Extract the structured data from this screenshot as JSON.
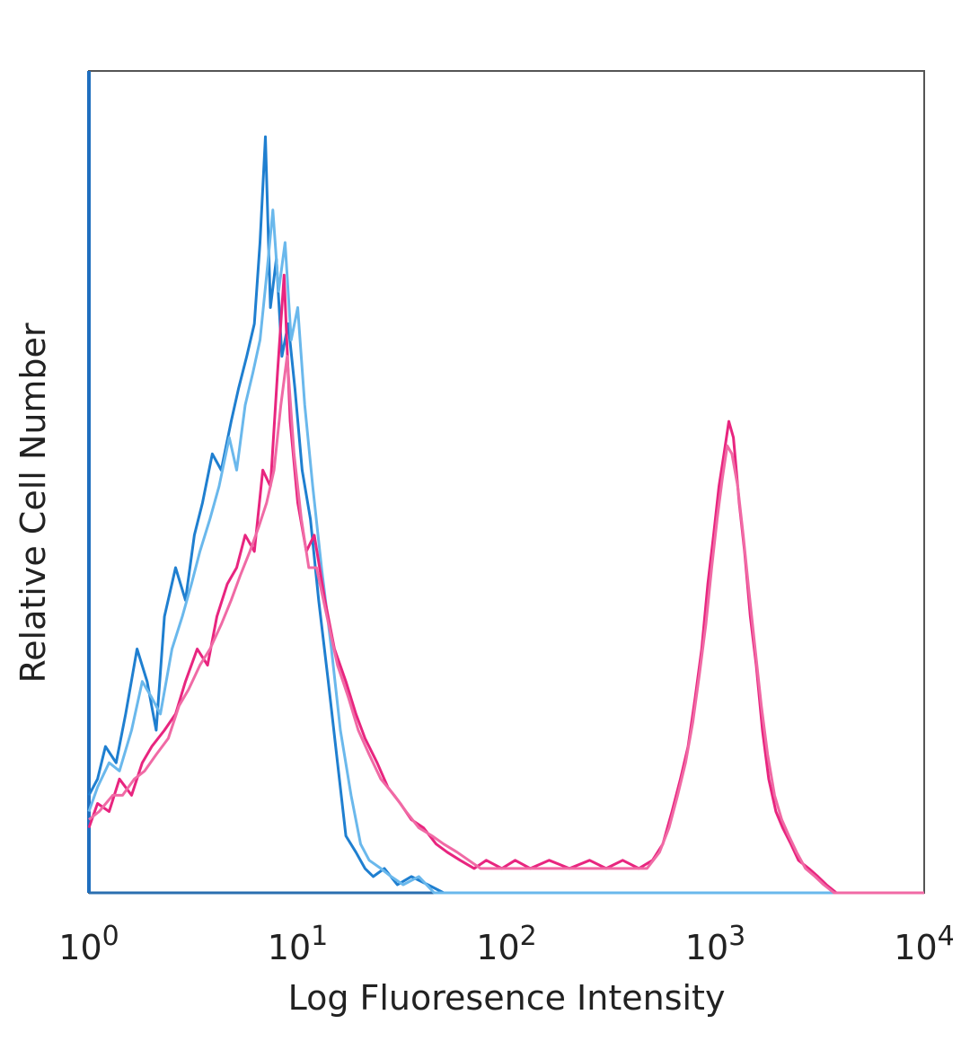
{
  "chart_data": {
    "type": "line",
    "title": "",
    "xlabel": "Log Fluoresence Intensity",
    "ylabel": "Relative Cell Number",
    "x_scale": "log",
    "xlim": [
      1,
      10000
    ],
    "ylim": [
      0,
      100
    ],
    "x_ticks": [
      {
        "value": 1,
        "base": "10",
        "exp": "0"
      },
      {
        "value": 10,
        "base": "10",
        "exp": "1"
      },
      {
        "value": 100,
        "base": "10",
        "exp": "2"
      },
      {
        "value": 1000,
        "base": "10",
        "exp": "3"
      },
      {
        "value": 10000,
        "base": "10",
        "exp": "4"
      }
    ],
    "grid": false,
    "legend": "none",
    "series": [
      {
        "color": "#1f7fd0",
        "x": [
          1,
          1.1,
          1.2,
          1.35,
          1.5,
          1.7,
          1.9,
          2.1,
          2.3,
          2.6,
          2.9,
          3.2,
          3.5,
          3.9,
          4.3,
          4.8,
          5.2,
          5.7,
          6.2,
          6.6,
          7.0,
          7.4,
          7.9,
          8.4,
          9.0,
          9.7,
          10.5,
          11.5,
          12.6,
          14,
          15.5,
          17,
          19,
          21,
          23,
          26,
          30,
          35,
          42,
          50,
          100,
          1000,
          10000
        ],
        "y": [
          12,
          14,
          18,
          16,
          22,
          30,
          26,
          20,
          34,
          40,
          36,
          44,
          48,
          54,
          52,
          58,
          62,
          66,
          70,
          80,
          93,
          72,
          78,
          66,
          70,
          62,
          52,
          46,
          36,
          26,
          16,
          7,
          5,
          3,
          2,
          3,
          1,
          2,
          1,
          0,
          0,
          0,
          0
        ]
      },
      {
        "color": "#6ab8ec",
        "x": [
          1,
          1.1,
          1.25,
          1.4,
          1.6,
          1.8,
          2.0,
          2.2,
          2.5,
          2.8,
          3.1,
          3.4,
          3.8,
          4.2,
          4.7,
          5.1,
          5.6,
          6.1,
          6.6,
          7.1,
          7.6,
          8.1,
          8.7,
          9.3,
          10,
          10.8,
          11.8,
          13,
          14.5,
          16,
          18,
          20,
          22,
          25,
          28,
          32,
          38,
          45,
          100,
          1000,
          10000
        ],
        "y": [
          10,
          13,
          16,
          15,
          20,
          26,
          24,
          22,
          30,
          34,
          38,
          42,
          46,
          50,
          56,
          52,
          60,
          64,
          68,
          76,
          84,
          74,
          80,
          68,
          72,
          60,
          50,
          40,
          30,
          20,
          12,
          6,
          4,
          3,
          2,
          1,
          2,
          0,
          0,
          0,
          0
        ]
      },
      {
        "color": "#e8257f",
        "x": [
          1,
          1.1,
          1.25,
          1.4,
          1.6,
          1.8,
          2.0,
          2.3,
          2.6,
          2.9,
          3.3,
          3.7,
          4.1,
          4.6,
          5.1,
          5.6,
          6.2,
          6.8,
          7.4,
          8.0,
          8.6,
          9.2,
          10,
          11,
          12,
          13.5,
          15,
          17,
          19,
          21,
          24,
          27,
          31,
          35,
          40,
          46,
          52,
          60,
          70,
          80,
          95,
          110,
          130,
          160,
          200,
          250,
          300,
          360,
          430,
          500,
          560,
          620,
          680,
          740,
          800,
          860,
          920,
          980,
          1040,
          1100,
          1160,
          1220,
          1300,
          1380,
          1470,
          1570,
          1680,
          1800,
          1950,
          2100,
          2300,
          2500,
          2800,
          3100,
          3400,
          3800,
          10000
        ],
        "y": [
          8,
          11,
          10,
          14,
          12,
          16,
          18,
          20,
          22,
          26,
          30,
          28,
          34,
          38,
          40,
          44,
          42,
          52,
          50,
          64,
          76,
          58,
          48,
          42,
          44,
          36,
          30,
          26,
          22,
          19,
          16,
          13,
          11,
          9,
          8,
          6,
          5,
          4,
          3,
          4,
          3,
          4,
          3,
          4,
          3,
          4,
          3,
          4,
          3,
          4,
          6,
          10,
          14,
          18,
          24,
          30,
          38,
          44,
          50,
          54,
          58,
          56,
          48,
          42,
          34,
          28,
          20,
          14,
          10,
          8,
          6,
          4,
          3,
          2,
          1,
          0,
          0
        ]
      },
      {
        "color": "#f06aa5",
        "x": [
          1,
          1.12,
          1.3,
          1.45,
          1.65,
          1.85,
          2.1,
          2.4,
          2.7,
          3.0,
          3.4,
          3.8,
          4.3,
          4.8,
          5.3,
          5.9,
          6.5,
          7.1,
          7.7,
          8.3,
          8.9,
          9.6,
          10.4,
          11.3,
          12.3,
          13.8,
          15.5,
          17.5,
          19.5,
          22,
          25,
          29,
          33,
          38,
          44,
          50,
          58,
          66,
          75,
          90,
          105,
          125,
          150,
          180,
          220,
          270,
          330,
          400,
          470,
          540,
          600,
          660,
          720,
          780,
          840,
          900,
          960,
          1020,
          1080,
          1140,
          1200,
          1280,
          1360,
          1450,
          1550,
          1660,
          1780,
          1920,
          2080,
          2250,
          2450,
          2700,
          3000,
          3300,
          3700,
          10000
        ],
        "y": [
          9,
          10,
          12,
          12,
          14,
          15,
          17,
          19,
          23,
          25,
          28,
          30,
          33,
          36,
          39,
          42,
          45,
          48,
          52,
          60,
          66,
          54,
          46,
          40,
          40,
          34,
          28,
          24,
          20,
          17,
          14,
          12,
          10,
          8,
          7,
          6,
          5,
          4,
          3,
          3,
          3,
          3,
          3,
          3,
          3,
          3,
          3,
          3,
          3,
          5,
          8,
          12,
          16,
          21,
          27,
          33,
          40,
          46,
          51,
          55,
          54,
          50,
          44,
          37,
          30,
          23,
          17,
          12,
          9,
          7,
          5,
          3,
          2,
          1,
          0,
          0
        ]
      }
    ]
  }
}
